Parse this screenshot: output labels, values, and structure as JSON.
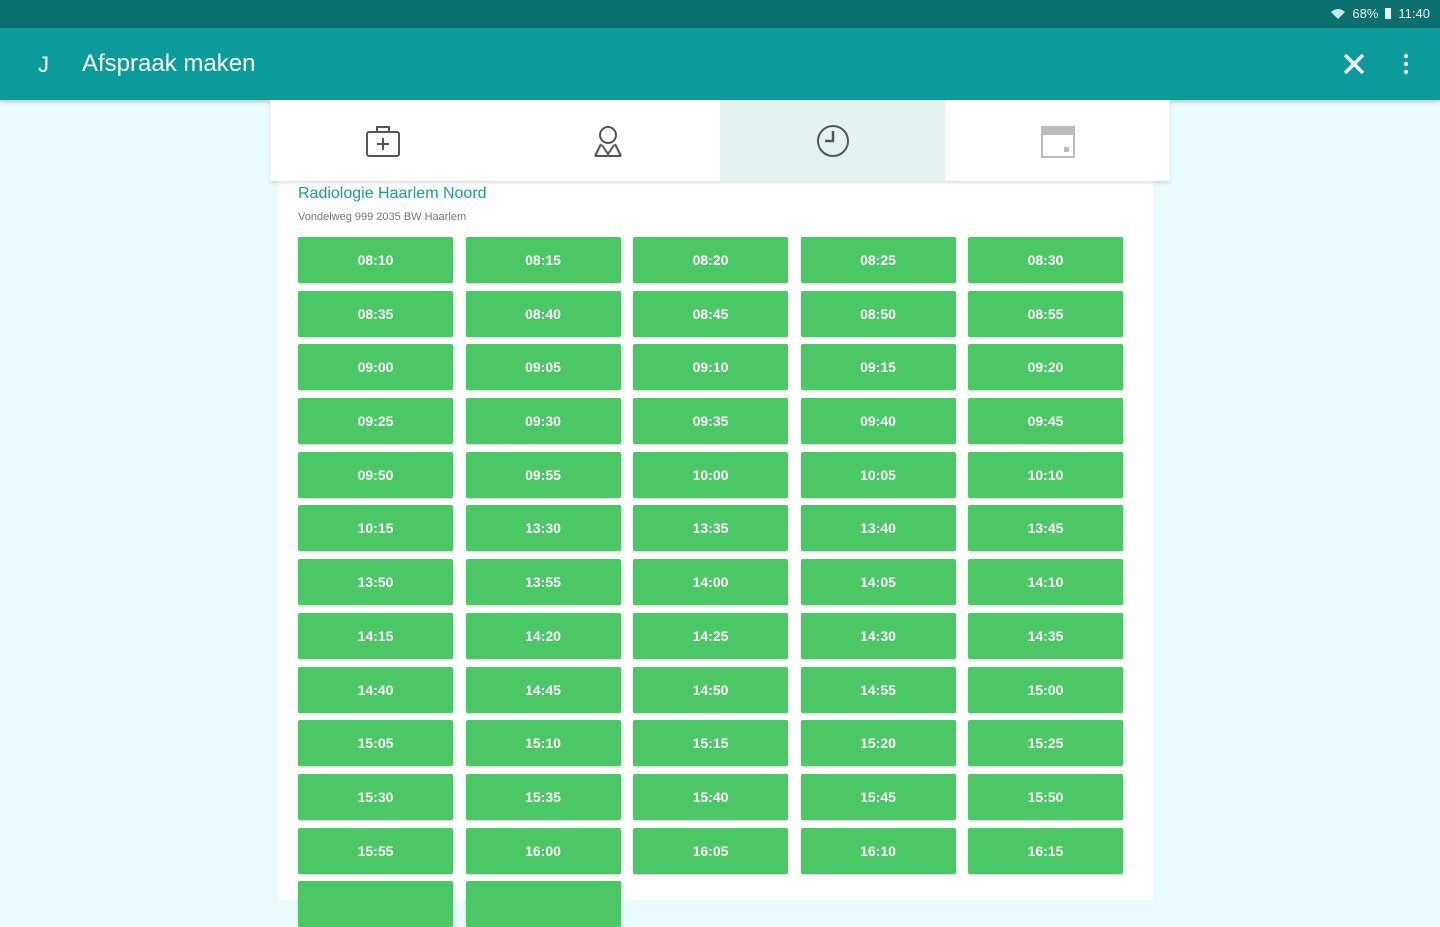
{
  "status_bar": {
    "battery": "68%",
    "time": "11:40"
  },
  "app_bar": {
    "initial": "J",
    "title": "Afspraak maken"
  },
  "location": {
    "name": "Radiologie Haarlem Noord",
    "address": "Vondelweg 999 2035 BW Haarlem"
  },
  "time_slots": [
    "08:10",
    "08:15",
    "08:20",
    "08:25",
    "08:30",
    "08:35",
    "08:40",
    "08:45",
    "08:50",
    "08:55",
    "09:00",
    "09:05",
    "09:10",
    "09:15",
    "09:20",
    "09:25",
    "09:30",
    "09:35",
    "09:40",
    "09:45",
    "09:50",
    "09:55",
    "10:00",
    "10:05",
    "10:10",
    "10:15",
    "13:30",
    "13:35",
    "13:40",
    "13:45",
    "13:50",
    "13:55",
    "14:00",
    "14:05",
    "14:10",
    "14:15",
    "14:20",
    "14:25",
    "14:30",
    "14:35",
    "14:40",
    "14:45",
    "14:50",
    "14:55",
    "15:00",
    "15:05",
    "15:10",
    "15:15",
    "15:20",
    "15:25",
    "15:30",
    "15:35",
    "15:40",
    "15:45",
    "15:50",
    "15:55",
    "16:00",
    "16:05",
    "16:10",
    "16:15"
  ]
}
